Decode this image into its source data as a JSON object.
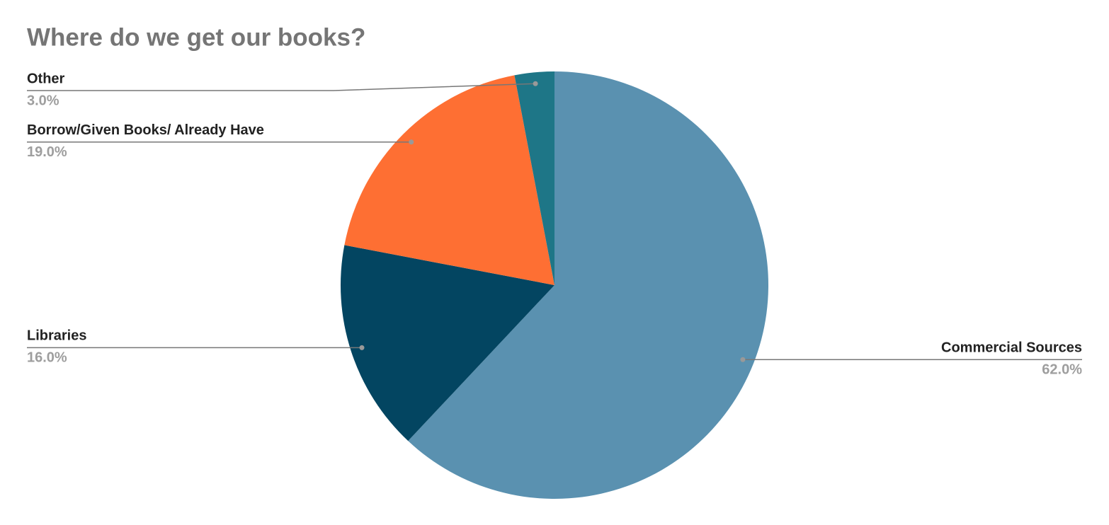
{
  "chart_data": {
    "type": "pie",
    "title": "Where do we get our books?",
    "categories": [
      "Commercial Sources",
      "Libraries",
      "Borrow/Given Books/ Already Have",
      "Other"
    ],
    "values": [
      62.0,
      16.0,
      19.0,
      3.0
    ],
    "value_labels": [
      "62.0%",
      "16.0%",
      "19.0%",
      "3.0%"
    ],
    "colors": [
      "#5a91b0",
      "#034561",
      "#fe6f33",
      "#1e7687"
    ]
  }
}
